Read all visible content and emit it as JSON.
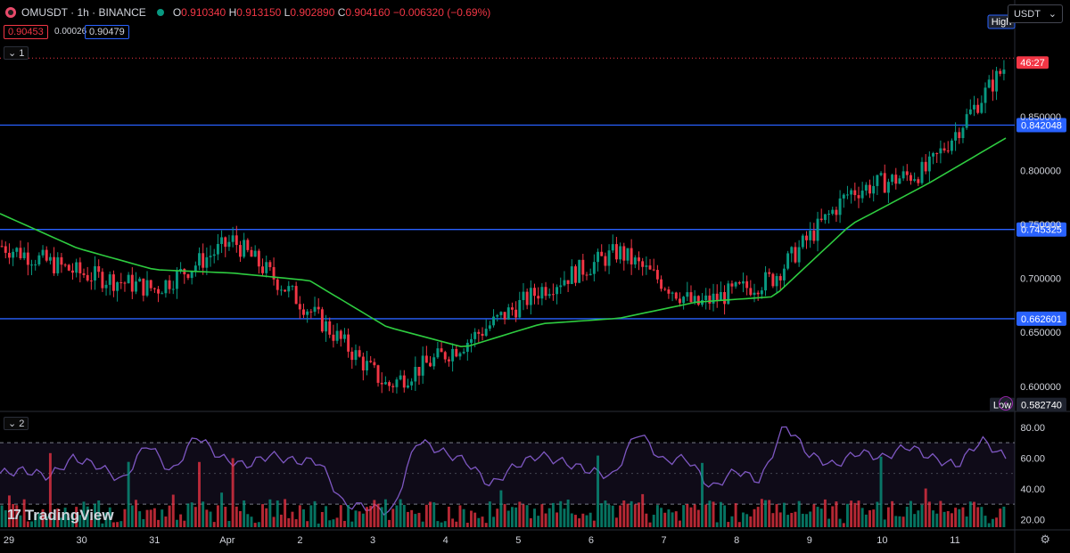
{
  "header": {
    "symbol": "OMUSDT · 1h · BINANCE",
    "ohlc": {
      "o": "0.910340",
      "h": "0.913150",
      "l": "0.902890",
      "c": "0.904160",
      "change": "−0.006320 (−0.69%)"
    },
    "bid": "0.90453",
    "spread": "0.00026",
    "ask": "0.90479",
    "currency": "USDT"
  },
  "panes": {
    "main_tag": "1",
    "rsi_tag": "2"
  },
  "brand": "TradingView",
  "colors": {
    "up": "#089981",
    "down": "#f23645",
    "ma": "#2ecc40",
    "hline": "#2962ff",
    "rsi": "#7e57c2"
  },
  "chart_data": {
    "type": "line",
    "symbol": "OMUSDT",
    "interval": "1h",
    "x_axis_labels": [
      "29",
      "30",
      "31",
      "Apr",
      "2",
      "3",
      "4",
      "5",
      "6",
      "7",
      "8",
      "9",
      "10",
      "11"
    ],
    "price_axis_ticks": [
      "0.850000",
      "0.800000",
      "0.750000",
      "0.700000",
      "0.650000",
      "0.600000"
    ],
    "ylim": [
      0.58,
      0.925
    ],
    "horizontal_lines": [
      "0.842048",
      "0.745325",
      "0.662601"
    ],
    "current_price": "0.904160",
    "countdown": "46:27",
    "high_label": "High",
    "low_label": "Low",
    "low_value": "0.582740",
    "close_series": {
      "x": [
        "29",
        "30",
        "31",
        "Apr",
        "2",
        "3",
        "4",
        "5",
        "6",
        "7",
        "8",
        "9",
        "10",
        "11"
      ],
      "values": [
        0.73,
        0.705,
        0.69,
        0.735,
        0.67,
        0.6,
        0.64,
        0.69,
        0.725,
        0.675,
        0.7,
        0.78,
        0.8,
        0.895
      ]
    },
    "ma_series": {
      "x": [
        "29",
        "30",
        "31",
        "Apr",
        "2",
        "3",
        "4",
        "5",
        "6",
        "7",
        "8",
        "9",
        "10",
        "11"
      ],
      "values": [
        0.76,
        0.728,
        0.708,
        0.705,
        0.698,
        0.655,
        0.636,
        0.658,
        0.663,
        0.678,
        0.683,
        0.75,
        0.788,
        0.83
      ]
    },
    "rsi": {
      "ticks": [
        "80.00",
        "60.00",
        "40.00",
        "20.00"
      ],
      "ylim": [
        15,
        88
      ],
      "upper": 70,
      "lower": 30,
      "values": [
        50,
        52,
        48,
        60,
        55,
        45,
        70,
        50,
        75,
        60,
        55,
        62,
        58,
        58,
        30,
        28,
        25,
        72,
        64,
        58,
        42,
        55,
        62,
        57,
        52,
        48,
        78,
        58,
        60,
        40,
        52,
        45,
        82,
        62,
        55,
        64,
        60,
        68,
        60,
        55,
        72,
        60
      ]
    }
  }
}
